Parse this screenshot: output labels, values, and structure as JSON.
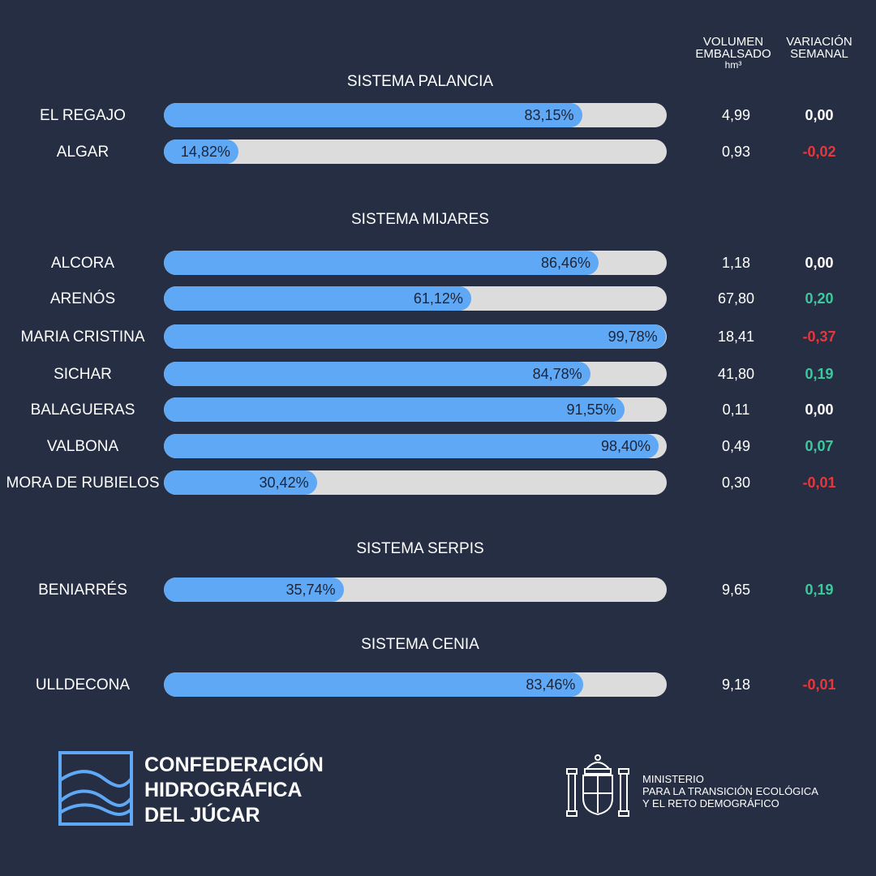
{
  "header": {
    "volumen_line1": "VOLUMEN",
    "volumen_line2": "EMBALSADO",
    "volumen_unit": "hm³",
    "variacion_line1": "VARIACIÓN",
    "variacion_line2": "SEMANAL"
  },
  "chart_data": {
    "type": "bar",
    "orientation": "horizontal",
    "value_unit": "%",
    "xlim": [
      0,
      100
    ],
    "colors": {
      "fill": "#5ea8f5",
      "track": "#dcdcdc",
      "background": "#252e43",
      "positive": "#3cc99d",
      "negative": "#e8363a",
      "zero": "#ffffff"
    },
    "systems": [
      {
        "title": "SISTEMA PALANCIA",
        "reservoirs": [
          {
            "name": "EL REGAJO",
            "percent": 83.15,
            "percent_label": "83,15%",
            "volume": "4,99",
            "variation": "0,00",
            "trend": "zero"
          },
          {
            "name": "ALGAR",
            "percent": 14.82,
            "percent_label": "14,82%",
            "volume": "0,93",
            "variation": "-0,02",
            "trend": "neg"
          }
        ]
      },
      {
        "title": "SISTEMA MIJARES",
        "reservoirs": [
          {
            "name": "ALCORA",
            "percent": 86.46,
            "percent_label": "86,46%",
            "volume": "1,18",
            "variation": "0,00",
            "trend": "zero"
          },
          {
            "name": "ARENÓS",
            "percent": 61.12,
            "percent_label": "61,12%",
            "volume": "67,80",
            "variation": "0,20",
            "trend": "pos"
          },
          {
            "name": "MARIA CRISTINA",
            "percent": 99.78,
            "percent_label": "99,78%",
            "volume": "18,41",
            "variation": "-0,37",
            "trend": "neg"
          },
          {
            "name": "SICHAR",
            "percent": 84.78,
            "percent_label": "84,78%",
            "volume": "41,80",
            "variation": "0,19",
            "trend": "pos"
          },
          {
            "name": "BALAGUERAS",
            "percent": 91.55,
            "percent_label": "91,55%",
            "volume": "0,11",
            "variation": "0,00",
            "trend": "zero"
          },
          {
            "name": "VALBONA",
            "percent": 98.4,
            "percent_label": "98,40%",
            "volume": "0,49",
            "variation": "0,07",
            "trend": "pos"
          },
          {
            "name": "MORA DE RUBIELOS",
            "percent": 30.42,
            "percent_label": "30,42%",
            "volume": "0,30",
            "variation": "-0,01",
            "trend": "neg"
          }
        ]
      },
      {
        "title": "SISTEMA SERPIS",
        "reservoirs": [
          {
            "name": "BENIARRÉS",
            "percent": 35.74,
            "percent_label": "35,74%",
            "volume": "9,65",
            "variation": "0,19",
            "trend": "pos"
          }
        ]
      },
      {
        "title": "SISTEMA CENIA",
        "reservoirs": [
          {
            "name": "ULLDECONA",
            "percent": 83.46,
            "percent_label": "83,46%",
            "volume": "9,18",
            "variation": "-0,01",
            "trend": "neg"
          }
        ]
      }
    ]
  },
  "footer": {
    "chj_line1": "CONFEDERACIÓN",
    "chj_line2": "HIDROGRÁFICA",
    "chj_line3": "DEL JÚCAR",
    "ministry_line1": "MINISTERIO",
    "ministry_line2": "PARA LA TRANSICIÓN ECOLÓGICA",
    "ministry_line3": "Y EL RETO DEMOGRÁFICO",
    "chj_logo_icon": "waves-logo-icon",
    "ministry_crest_icon": "coat-of-arms-icon"
  }
}
